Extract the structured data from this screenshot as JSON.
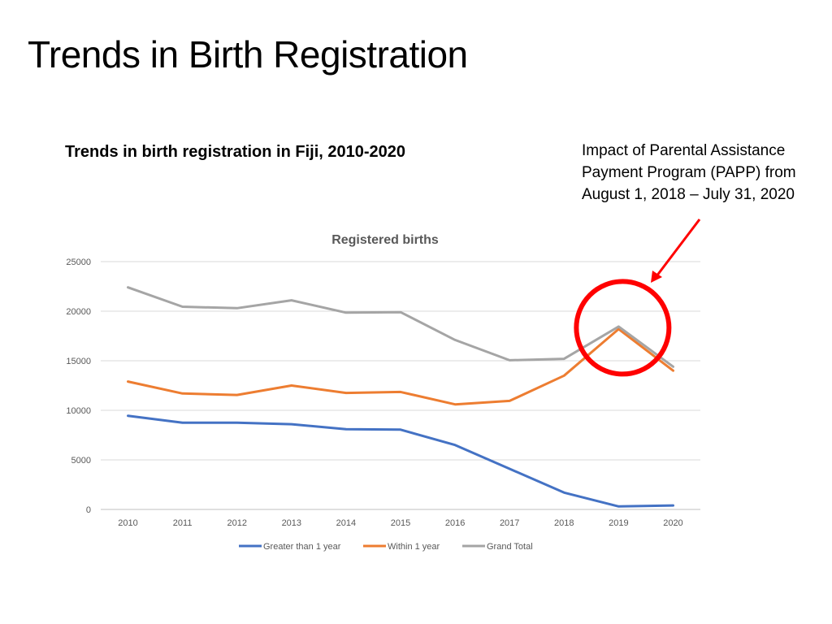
{
  "slide": {
    "title": "Trends in Birth Registration",
    "subtitle": "Trends in birth registration in Fiji, 2010-2020",
    "annotation": "Impact of Parental Assistance Payment Program (PAPP) from August 1, 2018 – July 31, 2020"
  },
  "chart_data": {
    "type": "line",
    "title": "Registered births",
    "xlabel": "",
    "ylabel": "",
    "x": [
      "2010",
      "2011",
      "2012",
      "2013",
      "2014",
      "2015",
      "2016",
      "2017",
      "2018",
      "2019",
      "2020"
    ],
    "ylim": [
      0,
      25000
    ],
    "yticks": [
      "0",
      "5000",
      "10000",
      "15000",
      "20000",
      "25000"
    ],
    "grid": true,
    "legend": "bottom",
    "series": [
      {
        "name": "Greater than 1 year",
        "color": "#4472C4",
        "values": [
          9450,
          8750,
          8750,
          8600,
          8100,
          8050,
          6500,
          4100,
          1700,
          300,
          400
        ]
      },
      {
        "name": "Within 1 year",
        "color": "#ED7D31",
        "values": [
          12900,
          11700,
          11550,
          12500,
          11750,
          11850,
          10600,
          10950,
          13500,
          18200,
          14000
        ]
      },
      {
        "name": "Grand Total",
        "color": "#A5A5A5",
        "values": [
          22400,
          20450,
          20300,
          21100,
          19850,
          19900,
          17100,
          15050,
          15200,
          18450,
          14400
        ]
      }
    ],
    "highlight": {
      "shape": "circle",
      "color": "#FF0000",
      "x": "2019"
    },
    "arrow_color": "#FF0000"
  }
}
